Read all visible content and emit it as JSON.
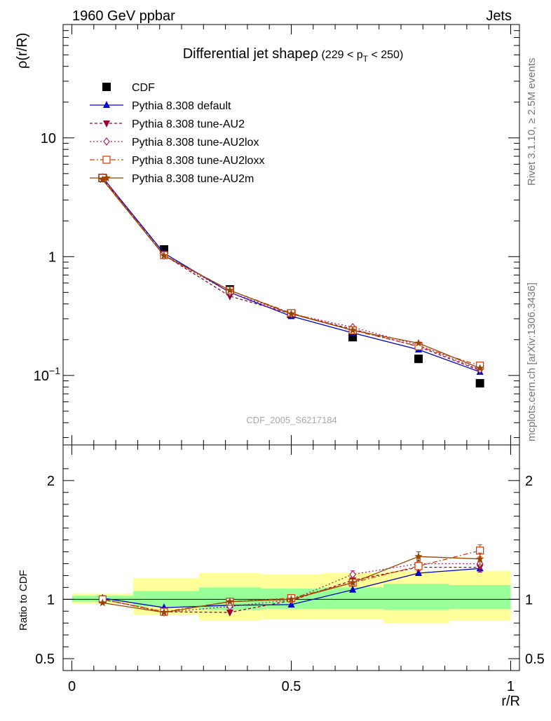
{
  "header": {
    "left": "1960 GeV ppbar",
    "right": "Jets",
    "side_top": "Rivet 3.1.10, ≥ 2.5M events",
    "side_bottom": "mcplots.cern.ch [arXiv:1306.3436]"
  },
  "plot": {
    "title_main": "Differential jet shapeρ",
    "title_pre": "(229 < p",
    "title_sub": "T",
    "title_post": " < 250)",
    "watermark": "CDF_2005_S6217184",
    "ylabel_main": "ρ(r/R)",
    "ylabel_ratio": "Ratio to CDF",
    "xlabel": "r/R"
  },
  "chart_data": [
    {
      "type": "line",
      "panel": "main",
      "yscale": "log",
      "xlim": [
        -0.02,
        1.02
      ],
      "ylim": [
        0.026,
        90
      ],
      "x_ticks": [
        0,
        0.5,
        1
      ],
      "x_tick_labels": [
        "0",
        "0.5",
        "1"
      ],
      "y_ticks": [
        10,
        1,
        0.1
      ],
      "y_tick_labels": [
        {
          "base": "10",
          "exp": ""
        },
        {
          "base": "1",
          "exp": ""
        },
        {
          "base": "10",
          "exp": "−1"
        }
      ],
      "x": [
        0.07,
        0.21,
        0.36,
        0.5,
        0.64,
        0.79,
        0.93
      ],
      "series": [
        {
          "name": "CDF",
          "color": "#000000",
          "marker": "square",
          "dash": "none",
          "values": [
            4.6,
            1.15,
            0.53,
            0.33,
            0.21,
            0.138,
            0.086
          ],
          "errors": [
            0.25,
            0.05,
            0.02,
            0.01,
            0.01,
            0.01,
            0.006
          ]
        },
        {
          "name": "Pythia 8.308 default",
          "color": "#0000cc",
          "marker": "triangle-up",
          "dash": "none",
          "values": [
            4.65,
            1.07,
            0.5,
            0.315,
            0.228,
            0.165,
            0.107
          ],
          "errors": [
            0,
            0,
            0,
            0,
            0,
            0.004,
            0.003
          ]
        },
        {
          "name": "Pythia 8.308 tune-AU2",
          "color": "#990033",
          "marker": "triangle-down",
          "dash": "4,3",
          "values": [
            4.55,
            1.03,
            0.465,
            0.33,
            0.245,
            0.175,
            0.11
          ],
          "errors": [
            0,
            0,
            0,
            0,
            0,
            0,
            0
          ]
        },
        {
          "name": "Pythia 8.308 tune-AU2lox",
          "color": "#aa2266",
          "marker": "diamond-open",
          "dash": "2,3",
          "values": [
            4.6,
            1.02,
            0.5,
            0.33,
            0.255,
            0.18,
            0.112
          ],
          "errors": [
            0,
            0,
            0,
            0,
            0,
            0,
            0
          ]
        },
        {
          "name": "Pythia 8.308 tune-AU2loxx",
          "color": "#cc4411",
          "marker": "square-open",
          "dash": "7,3,2,3",
          "values": [
            4.6,
            1.03,
            0.52,
            0.335,
            0.24,
            0.176,
            0.121
          ],
          "errors": [
            0,
            0,
            0,
            0,
            0,
            0,
            0
          ]
        },
        {
          "name": "Pythia 8.308 tune-AU2m",
          "color": "#994400",
          "marker": "star",
          "dash": "none",
          "values": [
            4.45,
            1.02,
            0.52,
            0.33,
            0.24,
            0.187,
            0.115
          ],
          "errors": [
            0,
            0,
            0,
            0,
            0,
            0,
            0
          ]
        }
      ]
    },
    {
      "type": "line",
      "panel": "ratio",
      "xlim": [
        -0.02,
        1.02
      ],
      "ylim": [
        0.4,
        2.3
      ],
      "y_ticks": [
        2,
        1,
        0.5
      ],
      "y_tick_labels": [
        "2",
        "1",
        "0.5"
      ],
      "x": [
        0.07,
        0.21,
        0.36,
        0.5,
        0.64,
        0.79,
        0.93
      ],
      "bands": {
        "edges": [
          0,
          0.14,
          0.29,
          0.43,
          0.57,
          0.71,
          0.86,
          1.0
        ],
        "inner_color": "#99ff99",
        "outer_color": "#ffff99",
        "inner": [
          [
            0.98,
            1.03
          ],
          [
            0.94,
            1.07
          ],
          [
            0.91,
            1.1
          ],
          [
            0.92,
            1.09
          ],
          [
            0.92,
            1.1
          ],
          [
            0.91,
            1.13
          ],
          [
            0.92,
            1.12
          ]
        ],
        "outer": [
          [
            0.96,
            1.05
          ],
          [
            0.87,
            1.18
          ],
          [
            0.82,
            1.22
          ],
          [
            0.83,
            1.21
          ],
          [
            0.83,
            1.22
          ],
          [
            0.8,
            1.24
          ],
          [
            0.82,
            1.24
          ]
        ]
      },
      "series": [
        {
          "name": "Pythia 8.308 default",
          "color": "#0000cc",
          "marker": "triangle-up",
          "dash": "none",
          "values": [
            1.01,
            0.93,
            0.95,
            0.955,
            1.08,
            1.22,
            1.26
          ],
          "errors": [
            0.02,
            0,
            0,
            0,
            0,
            0.02,
            0.03
          ]
        },
        {
          "name": "Pythia 8.308 tune-AU2",
          "color": "#990033",
          "marker": "triangle-down",
          "dash": "4,3",
          "values": [
            1.0,
            0.895,
            0.89,
            0.99,
            1.16,
            1.27,
            1.27
          ],
          "errors": [
            0,
            0,
            0,
            0,
            0.03,
            0.03,
            0.04
          ]
        },
        {
          "name": "Pythia 8.308 tune-AU2lox",
          "color": "#aa2266",
          "marker": "diamond-open",
          "dash": "2,3",
          "values": [
            1.0,
            0.89,
            0.94,
            0.995,
            1.21,
            1.3,
            1.3
          ],
          "errors": [
            0,
            0,
            0,
            0,
            0.03,
            0.03,
            0.04
          ]
        },
        {
          "name": "Pythia 8.308 tune-AU2loxx",
          "color": "#cc4411",
          "marker": "square-open",
          "dash": "7,3,2,3",
          "values": [
            1.0,
            0.895,
            0.98,
            1.01,
            1.14,
            1.28,
            1.41
          ],
          "errors": [
            0,
            0,
            0,
            0,
            0.03,
            0.03,
            0.05
          ]
        },
        {
          "name": "Pythia 8.308 tune-AU2m",
          "color": "#994400",
          "marker": "star",
          "dash": "none",
          "values": [
            0.97,
            0.89,
            0.98,
            1.0,
            1.14,
            1.36,
            1.34
          ],
          "errors": [
            0,
            0,
            0,
            0,
            0.03,
            0.04,
            0.05
          ]
        }
      ]
    }
  ]
}
